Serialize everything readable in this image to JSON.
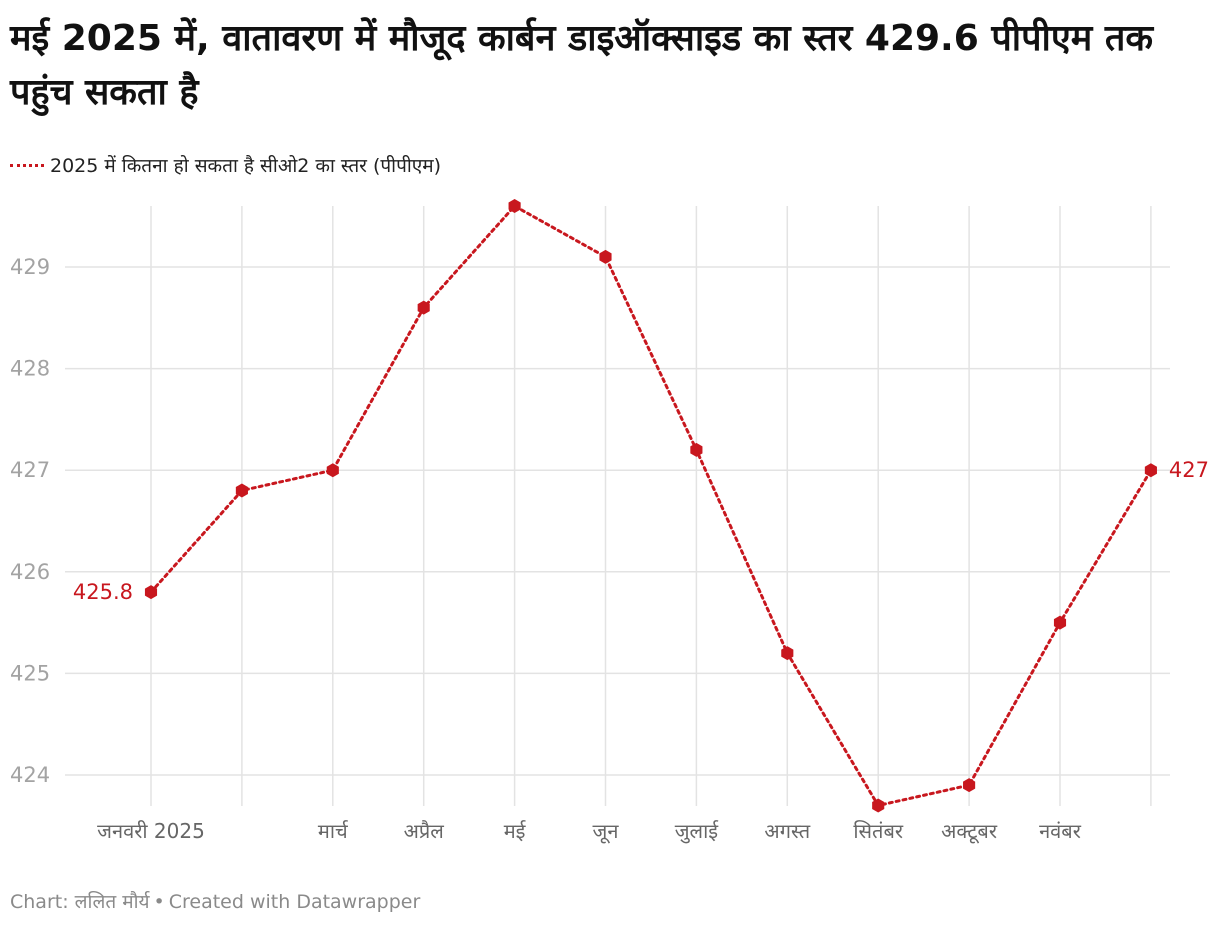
{
  "title": "मई 2025 में, वातावरण में मौजूद कार्बन डाइऑक्साइड का स्तर 429.6 पीपीएम तक पहुंच सकता है",
  "legend_label": "2025 में कितना हो सकता है सीओ2 का स्तर (पीपीएम)",
  "footer": {
    "chart_credit": "Chart: ललित मौर्य",
    "created_with": "Created with Datawrapper"
  },
  "colors": {
    "series": "#c8171e",
    "grid": "#e3e3e3",
    "tick_label": "#a3a3a3",
    "x_label": "#666666"
  },
  "chart_data": {
    "type": "line",
    "title": "मई 2025 में, वातावरण में मौजूद कार्बन डाइऑक्साइड का स्तर 429.6 पीपीएम तक पहुंच सकता है",
    "xlabel": "",
    "ylabel": "",
    "ylim": [
      423.7,
      429.6
    ],
    "yticks": [
      424,
      425,
      426,
      427,
      428,
      429
    ],
    "x": [
      1,
      2,
      3,
      4,
      5,
      6,
      7,
      8,
      9,
      10,
      11,
      12
    ],
    "xtick_labels": [
      "जनवरी 2025",
      "",
      "मार्च",
      "अप्रैल",
      "मई",
      "जून",
      "जुलाई",
      "अगस्त",
      "सितंबर",
      "अक्टूबर",
      "नवंबर",
      ""
    ],
    "series": [
      {
        "name": "2025 में कितना हो सकता है सीओ2 का स्तर (पीपीएम)",
        "values": [
          425.8,
          426.8,
          427.0,
          428.6,
          429.6,
          429.1,
          427.2,
          425.2,
          423.7,
          423.9,
          425.5,
          427.0
        ]
      }
    ],
    "annotations": [
      {
        "index": 0,
        "text": "425.8",
        "side": "left"
      },
      {
        "index": 11,
        "text": "427",
        "side": "right"
      }
    ],
    "grid": true,
    "legend_position": "top-left",
    "marker": "hexagon",
    "line_style": "dotted"
  }
}
